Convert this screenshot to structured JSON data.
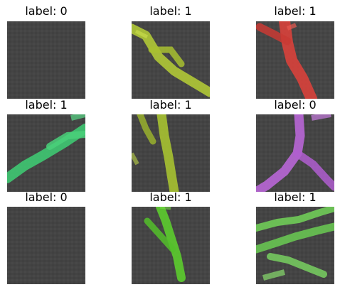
{
  "panels": [
    {
      "label": "label: 0",
      "stroke": "none",
      "glow": "none"
    },
    {
      "label": "label: 1",
      "stroke": "#b0c836",
      "glow": "#c8dc4a"
    },
    {
      "label": "label: 1",
      "stroke": "#d8413b",
      "glow": "#e85a50"
    },
    {
      "label": "label: 1",
      "stroke": "#3fc872",
      "glow": "#5ad888"
    },
    {
      "label": "label: 1",
      "stroke": "#a7c231",
      "glow": "#bcd448"
    },
    {
      "label": "label: 0",
      "stroke": "#b866d6",
      "glow": "#c87ee0"
    },
    {
      "label": "label: 0",
      "stroke": "none",
      "glow": "none"
    },
    {
      "label": "label: 1",
      "stroke": "#5ccc2e",
      "glow": "#74dc44"
    },
    {
      "label": "label: 1",
      "stroke": "#70cc58",
      "glow": "#88dc6c"
    }
  ],
  "colors": {
    "background": "#444444",
    "noise_light": "#505050",
    "noise_dark": "#3a3a3a"
  }
}
